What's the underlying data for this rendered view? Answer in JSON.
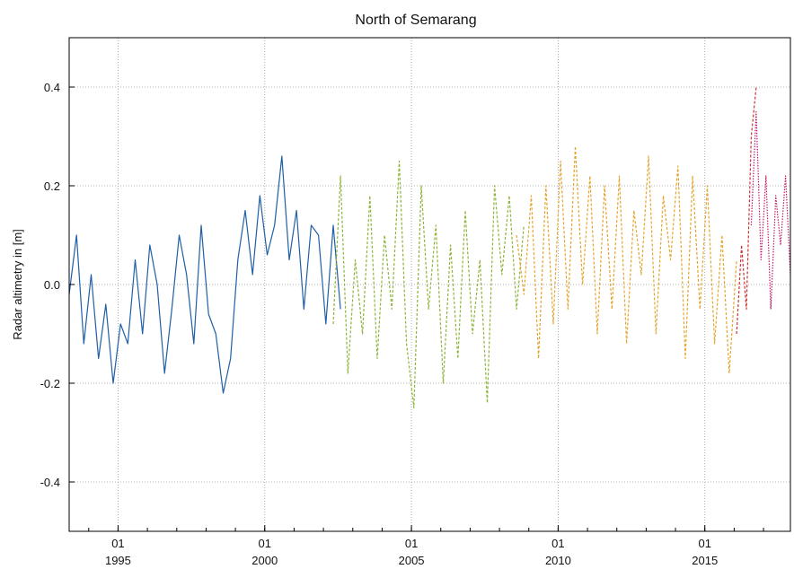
{
  "chart_data": {
    "type": "line",
    "title": "North of Semarang",
    "xlabel": "",
    "ylabel": "Radar altimetry in [m]",
    "x_range": [
      "1993-05-01",
      "1018-01-01"
    ],
    "ylim": [
      -0.5,
      0.5
    ],
    "y_ticks": [
      -0.4,
      -0.2,
      0.0,
      0.2,
      0.4
    ],
    "y_tick_labels": [
      "-0.4",
      "-0.2",
      "0.0",
      "0.2",
      "0.4"
    ],
    "x_ticks": [
      {
        "date": "1995-01-01",
        "day": "01",
        "year": "1995"
      },
      {
        "date": "2000-01-01",
        "day": "01",
        "year": "2000"
      },
      {
        "date": "2005-01-01",
        "day": "01",
        "year": "2005"
      },
      {
        "date": "2010-01-01",
        "day": "01",
        "year": "2010"
      },
      {
        "date": "2015-01-01",
        "day": "01",
        "year": "2015"
      }
    ],
    "grid": true,
    "series": [
      {
        "color": "#1f5fa8",
        "dash": "solid",
        "x": [
          "1993-05",
          "1993-08",
          "1993-11",
          "1994-02",
          "1994-05",
          "1994-08",
          "1994-11",
          "1995-02",
          "1995-05",
          "1995-08",
          "1995-11",
          "1996-02",
          "1996-05",
          "1996-08",
          "1996-11",
          "1997-02",
          "1997-05",
          "1997-08",
          "1997-11",
          "1998-02",
          "1998-05",
          "1998-08",
          "1998-11",
          "1999-02",
          "1999-05",
          "1999-08",
          "1999-11",
          "2000-02",
          "2000-05",
          "2000-08",
          "2000-11",
          "2001-02",
          "2001-05",
          "2001-08",
          "2001-11",
          "2002-02",
          "2002-05",
          "2002-08"
        ],
        "values": [
          -0.02,
          0.1,
          -0.12,
          0.02,
          -0.15,
          -0.04,
          -0.2,
          -0.08,
          -0.12,
          0.05,
          -0.1,
          0.08,
          0.0,
          -0.18,
          -0.05,
          0.1,
          0.02,
          -0.12,
          0.12,
          -0.06,
          -0.1,
          -0.22,
          -0.15,
          0.05,
          0.15,
          0.02,
          0.18,
          0.06,
          0.12,
          0.26,
          0.05,
          0.15,
          -0.05,
          0.12,
          0.1,
          -0.08,
          0.12,
          -0.05
        ]
      },
      {
        "color": "#8db33a",
        "dash": "dashed",
        "x": [
          "2002-05",
          "2002-08",
          "2002-11",
          "2003-02",
          "2003-05",
          "2003-08",
          "2003-11",
          "2004-02",
          "2004-05",
          "2004-08",
          "2004-11",
          "2005-02",
          "2005-05",
          "2005-08",
          "2005-11",
          "2006-02",
          "2006-05",
          "2006-08",
          "2006-11",
          "2007-02",
          "2007-05",
          "2007-08",
          "2007-11",
          "2008-02",
          "2008-05",
          "2008-08",
          "2008-11"
        ],
        "values": [
          -0.08,
          0.22,
          -0.18,
          0.05,
          -0.1,
          0.18,
          -0.15,
          0.1,
          -0.05,
          0.25,
          -0.12,
          -0.25,
          0.2,
          -0.05,
          0.12,
          -0.2,
          0.08,
          -0.15,
          0.15,
          -0.1,
          0.05,
          -0.24,
          0.2,
          0.02,
          0.18,
          -0.05,
          0.12
        ]
      },
      {
        "color": "#e3a52f",
        "dash": "dashed",
        "x": [
          "2008-08",
          "2008-11",
          "2009-02",
          "2009-05",
          "2009-08",
          "2009-11",
          "2010-02",
          "2010-05",
          "2010-08",
          "2010-11",
          "2011-02",
          "2011-05",
          "2011-08",
          "2011-11",
          "2012-02",
          "2012-05",
          "2012-08",
          "2012-11",
          "2013-02",
          "2013-05",
          "2013-08",
          "2013-11",
          "2014-02",
          "2014-05",
          "2014-08",
          "2014-11",
          "2015-02",
          "2015-05",
          "2015-08",
          "2015-11",
          "2016-02"
        ],
        "values": [
          0.1,
          -0.02,
          0.18,
          -0.15,
          0.2,
          -0.08,
          0.25,
          -0.05,
          0.28,
          0.0,
          0.22,
          -0.1,
          0.2,
          -0.05,
          0.22,
          -0.12,
          0.15,
          0.02,
          0.26,
          -0.1,
          0.18,
          0.05,
          0.24,
          -0.15,
          0.22,
          -0.05,
          0.2,
          -0.12,
          0.1,
          -0.18,
          0.05
        ]
      },
      {
        "color": "#cc3333",
        "dash": "dashed",
        "x": [
          "2016-02",
          "2016-04",
          "2016-06",
          "2016-08",
          "2016-10"
        ],
        "values": [
          -0.1,
          0.08,
          -0.05,
          0.3,
          0.4
        ]
      },
      {
        "color": "#c2186b",
        "dash": "dotted",
        "x": [
          "2016-08",
          "2016-10",
          "2016-12",
          "2017-02",
          "2017-04",
          "2017-06",
          "2017-08",
          "2017-10",
          "2017-12"
        ],
        "values": [
          0.12,
          0.35,
          0.05,
          0.22,
          -0.05,
          0.18,
          0.08,
          0.22,
          0.02
        ]
      }
    ]
  }
}
